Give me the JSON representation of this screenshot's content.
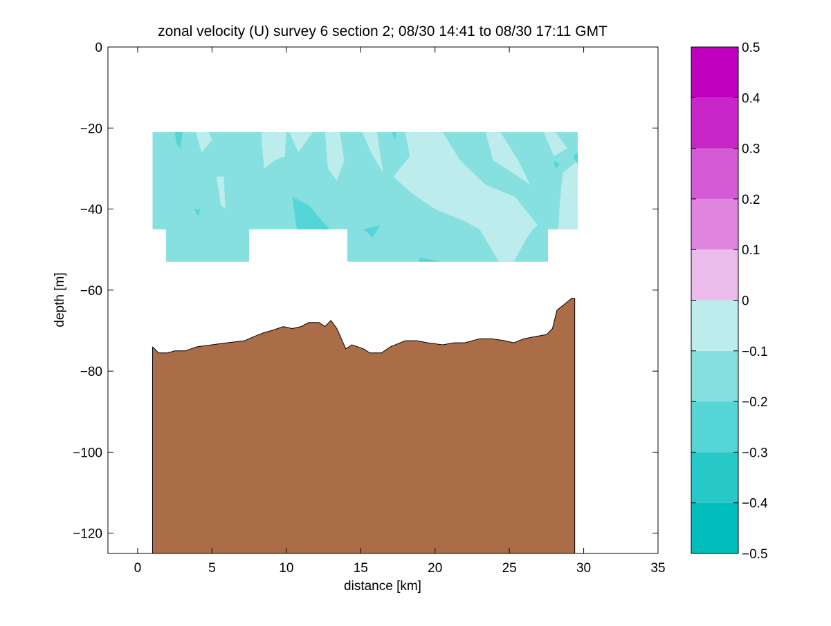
{
  "chart_data": {
    "type": "heatmap",
    "title": "zonal velocity (U) survey 6 section 2; 08/30 14:41 to 08/30 17:11 GMT",
    "xlabel": "distance [km]",
    "ylabel": "depth [m]",
    "xlim": [
      -2,
      35
    ],
    "ylim": [
      -125,
      0
    ],
    "x_ticks": [
      0,
      5,
      10,
      15,
      20,
      25,
      30,
      35
    ],
    "y_ticks": [
      -120,
      -100,
      -80,
      -60,
      -40,
      -20,
      0
    ],
    "grid": false,
    "colorbar": {
      "range": [
        -0.5,
        0.5
      ],
      "ticks": [
        -0.5,
        -0.4,
        -0.3,
        -0.2,
        -0.1,
        0,
        0.1,
        0.2,
        0.3,
        0.4,
        0.5
      ],
      "tick_labels": [
        "−0.5",
        "−0.4",
        "−0.3",
        "−0.2",
        "−0.1",
        "0",
        "0.1",
        "0.2",
        "0.3",
        "0.4",
        "0.5"
      ],
      "levels": [
        {
          "from": -0.5,
          "to": -0.4,
          "color": "#00bebe"
        },
        {
          "from": -0.4,
          "to": -0.3,
          "color": "#26c8c8"
        },
        {
          "from": -0.3,
          "to": -0.2,
          "color": "#55d5d5"
        },
        {
          "from": -0.2,
          "to": -0.1,
          "color": "#86e0e0"
        },
        {
          "from": -0.1,
          "to": 0.0,
          "color": "#bcecec"
        },
        {
          "from": 0.0,
          "to": 0.1,
          "color": "#ecbcec"
        },
        {
          "from": 0.1,
          "to": 0.2,
          "color": "#e086e0"
        },
        {
          "from": 0.2,
          "to": 0.3,
          "color": "#d55ad5"
        },
        {
          "from": 0.3,
          "to": 0.4,
          "color": "#c826c8"
        },
        {
          "from": 0.4,
          "to": 0.5,
          "color": "#be00be"
        }
      ]
    },
    "velocity_field": {
      "base_level_color": "#86e0e0",
      "outline_km_m": [
        [
          1.0,
          -21
        ],
        [
          29.6,
          -21
        ],
        [
          29.6,
          -45
        ],
        [
          27.6,
          -45
        ],
        [
          27.6,
          -53
        ],
        [
          14.1,
          -53
        ],
        [
          14.1,
          -45
        ],
        [
          7.5,
          -45
        ],
        [
          7.5,
          -53
        ],
        [
          1.9,
          -53
        ],
        [
          1.9,
          -45
        ],
        [
          1.0,
          -45
        ]
      ],
      "patches": [
        {
          "level": -0.1,
          "points": [
            [
              3.9,
              -21
            ],
            [
              4.8,
              -21
            ],
            [
              5.0,
              -23
            ],
            [
              4.3,
              -26
            ]
          ]
        },
        {
          "level": -0.1,
          "points": [
            [
              5.3,
              -32
            ],
            [
              5.8,
              -32
            ],
            [
              5.9,
              -40
            ],
            [
              5.6,
              -39
            ]
          ]
        },
        {
          "level": -0.1,
          "points": [
            [
              8.3,
              -21
            ],
            [
              10.0,
              -21
            ],
            [
              9.9,
              -27
            ],
            [
              9.2,
              -28
            ],
            [
              8.5,
              -30
            ]
          ]
        },
        {
          "level": -0.1,
          "points": [
            [
              10.2,
              -21
            ],
            [
              11.8,
              -21
            ],
            [
              11.4,
              -23
            ],
            [
              10.8,
              -26
            ]
          ]
        },
        {
          "level": -0.1,
          "points": [
            [
              12.6,
              -21
            ],
            [
              13.6,
              -21
            ],
            [
              13.9,
              -28
            ],
            [
              13.4,
              -33
            ],
            [
              12.8,
              -30
            ]
          ]
        },
        {
          "level": -0.1,
          "points": [
            [
              15.1,
              -21
            ],
            [
              16.1,
              -21
            ],
            [
              16.5,
              -31
            ],
            [
              15.7,
              -26
            ]
          ]
        },
        {
          "level": -0.1,
          "points": [
            [
              18.0,
              -21
            ],
            [
              20.5,
              -21
            ],
            [
              21.7,
              -28
            ],
            [
              23.4,
              -34
            ],
            [
              25.4,
              -37
            ],
            [
              26.9,
              -44
            ],
            [
              26.6,
              -45
            ],
            [
              26.2,
              -47
            ],
            [
              25.3,
              -53
            ],
            [
              24.3,
              -53
            ],
            [
              23.0,
              -45
            ],
            [
              22.0,
              -43
            ],
            [
              20.0,
              -40
            ],
            [
              18.4,
              -36
            ],
            [
              17.2,
              -32
            ],
            [
              18.3,
              -27
            ]
          ]
        },
        {
          "level": -0.1,
          "points": [
            [
              23.4,
              -21
            ],
            [
              24.4,
              -21
            ],
            [
              25.6,
              -28
            ],
            [
              26.4,
              -34
            ],
            [
              25.2,
              -31
            ],
            [
              23.9,
              -28
            ]
          ]
        },
        {
          "level": -0.1,
          "points": [
            [
              27.3,
              -21
            ],
            [
              28.1,
              -21
            ],
            [
              28.9,
              -25
            ],
            [
              28.0,
              -27
            ]
          ]
        },
        {
          "level": -0.1,
          "points": [
            [
              28.6,
              -31
            ],
            [
              29.6,
              -28
            ],
            [
              29.6,
              -45
            ],
            [
              28.3,
              -45
            ],
            [
              28.4,
              -38
            ]
          ]
        },
        {
          "level": -0.3,
          "points": [
            [
              2.5,
              -21
            ],
            [
              3.0,
              -21
            ],
            [
              2.9,
              -25
            ],
            [
              2.6,
              -24
            ]
          ]
        },
        {
          "level": -0.3,
          "points": [
            [
              3.8,
              -40
            ],
            [
              4.2,
              -40
            ],
            [
              4.1,
              -42
            ]
          ]
        },
        {
          "level": -0.3,
          "points": [
            [
              10.4,
              -37
            ],
            [
              11.5,
              -39
            ],
            [
              12.9,
              -45
            ],
            [
              10.7,
              -45
            ]
          ]
        },
        {
          "level": -0.3,
          "points": [
            [
              15.2,
              -45
            ],
            [
              16.3,
              -44
            ],
            [
              15.8,
              -47
            ]
          ]
        },
        {
          "level": -0.3,
          "points": [
            [
              19.0,
              -52
            ],
            [
              20.4,
              -53
            ],
            [
              18.9,
              -53
            ]
          ]
        },
        {
          "level": -0.3,
          "points": [
            [
              28.0,
              -28
            ],
            [
              28.4,
              -29
            ],
            [
              28.1,
              -30
            ]
          ]
        },
        {
          "level": -0.3,
          "points": [
            [
              29.3,
              -27
            ],
            [
              29.6,
              -26
            ],
            [
              29.6,
              -29
            ]
          ]
        },
        {
          "level": -0.3,
          "points": [
            [
              17.1,
              -21
            ],
            [
              17.4,
              -21
            ],
            [
              17.3,
              -23
            ]
          ]
        }
      ]
    },
    "bathymetry": {
      "fill_color": "#ab6d47",
      "bottom_depth_m": -125,
      "seafloor_km_m": [
        [
          1.0,
          -74
        ],
        [
          1.4,
          -75.5
        ],
        [
          2.0,
          -75.5
        ],
        [
          2.5,
          -75
        ],
        [
          3.2,
          -75
        ],
        [
          4.0,
          -74
        ],
        [
          5.0,
          -73.5
        ],
        [
          6.0,
          -73
        ],
        [
          7.2,
          -72.5
        ],
        [
          7.8,
          -71.5
        ],
        [
          8.5,
          -70.5
        ],
        [
          9.0,
          -70
        ],
        [
          9.8,
          -69
        ],
        [
          10.4,
          -69.5
        ],
        [
          11.0,
          -69
        ],
        [
          11.5,
          -68
        ],
        [
          12.2,
          -68
        ],
        [
          12.6,
          -69
        ],
        [
          13.0,
          -67.5
        ],
        [
          13.4,
          -69.5
        ],
        [
          13.7,
          -72
        ],
        [
          14.0,
          -74.5
        ],
        [
          14.4,
          -73.5
        ],
        [
          15.2,
          -74.5
        ],
        [
          15.6,
          -75.5
        ],
        [
          16.4,
          -75.5
        ],
        [
          17.0,
          -74
        ],
        [
          18.0,
          -72.5
        ],
        [
          18.8,
          -72.5
        ],
        [
          19.5,
          -73
        ],
        [
          20.5,
          -73.5
        ],
        [
          21.3,
          -73
        ],
        [
          22.0,
          -73
        ],
        [
          23.0,
          -72
        ],
        [
          23.8,
          -72
        ],
        [
          24.7,
          -72.5
        ],
        [
          25.3,
          -73
        ],
        [
          26.0,
          -72
        ],
        [
          26.7,
          -71.5
        ],
        [
          27.5,
          -71
        ],
        [
          27.9,
          -69.5
        ],
        [
          28.2,
          -65
        ],
        [
          28.7,
          -63.5
        ],
        [
          29.2,
          -62
        ],
        [
          29.4,
          -62
        ]
      ]
    }
  }
}
